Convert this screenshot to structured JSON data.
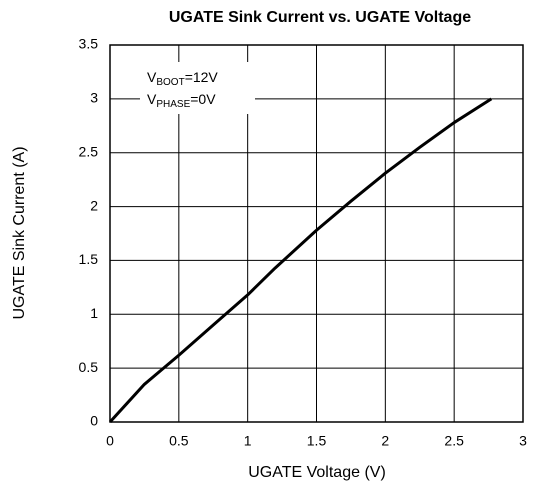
{
  "chart_data": {
    "type": "line",
    "title": "UGATE Sink Current vs. UGATE Voltage",
    "x_label": "UGATE Voltage (V)",
    "y_label": "UGATE Sink Current (A)",
    "annotations": [
      {
        "main": "V",
        "sub": "BOOT",
        "rest": "=12V"
      },
      {
        "main": "V",
        "sub": "PHASE",
        "rest": "=0V"
      }
    ],
    "series": [
      {
        "name": "UGATE",
        "color": "#000000",
        "x": [
          0,
          0.25,
          0.5,
          0.75,
          1,
          1.2,
          1.5,
          1.75,
          2,
          2.25,
          2.5,
          2.77
        ],
        "values": [
          0,
          0.35,
          0.62,
          0.9,
          1.18,
          1.43,
          1.78,
          2.05,
          2.31,
          2.55,
          2.78,
          3
        ]
      }
    ],
    "xlim": [
      0,
      3
    ],
    "xticks": [
      0,
      0.5,
      1,
      1.5,
      2,
      2.5,
      3
    ],
    "ylim": [
      0,
      3.5
    ],
    "yticks": [
      0,
      0.5,
      1,
      1.5,
      2,
      2.5,
      3,
      3.5
    ],
    "grid": true
  }
}
